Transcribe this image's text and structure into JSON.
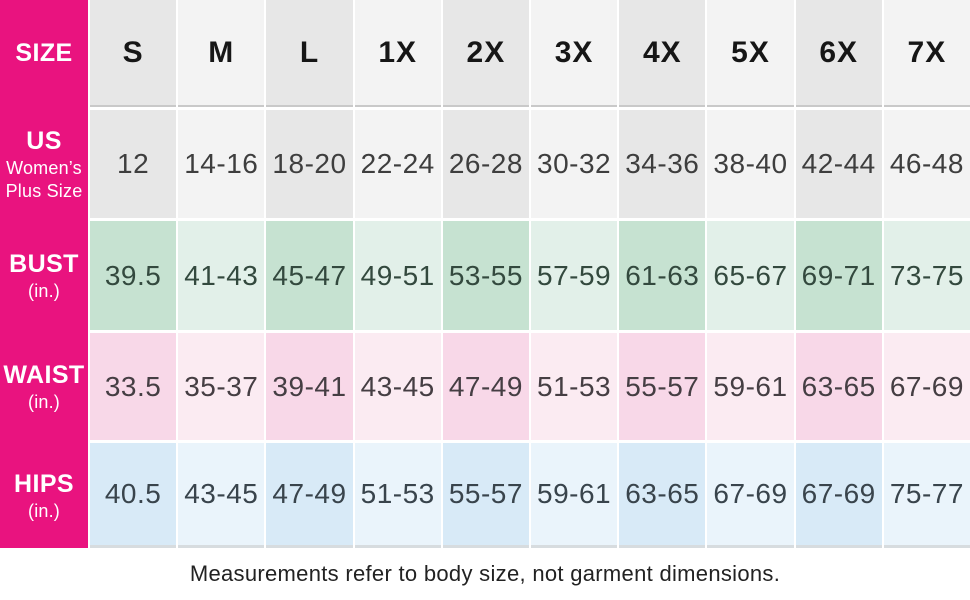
{
  "brand_pink": "#e9137f",
  "size_chart": {
    "corner_label": "SIZE",
    "columns": [
      "S",
      "M",
      "L",
      "1X",
      "2X",
      "3X",
      "4X",
      "5X",
      "6X",
      "7X"
    ],
    "header_bg_dark": "#e7e7e7",
    "header_bg_light": "#f3f3f3",
    "rows": [
      {
        "label": "US",
        "sublabel_lines": [
          "Women’s",
          "Plus Size"
        ],
        "values": [
          "12",
          "14-16",
          "18-20",
          "22-24",
          "26-28",
          "30-32",
          "34-36",
          "38-40",
          "42-44",
          "46-48"
        ],
        "bg_dark": "#e7e7e7",
        "bg_light": "#f3f3f3",
        "text_color": "#3e3e3e"
      },
      {
        "label": "BUST",
        "sublabel_lines": [
          "(in.)"
        ],
        "values": [
          "39.5",
          "41-43",
          "45-47",
          "49-51",
          "53-55",
          "57-59",
          "61-63",
          "65-67",
          "69-71",
          "73-75"
        ],
        "bg_dark": "#c6e2d1",
        "bg_light": "#e2f0e9",
        "text_color": "#33493e"
      },
      {
        "label": "WAIST",
        "sublabel_lines": [
          "(in.)"
        ],
        "values": [
          "33.5",
          "35-37",
          "39-41",
          "43-45",
          "47-49",
          "51-53",
          "55-57",
          "59-61",
          "63-65",
          "67-69"
        ],
        "bg_dark": "#f8d8e8",
        "bg_light": "#fbebf2",
        "text_color": "#453e43"
      },
      {
        "label": "HIPS",
        "sublabel_lines": [
          "(in.)"
        ],
        "values": [
          "40.5",
          "43-45",
          "47-49",
          "51-53",
          "55-57",
          "59-61",
          "63-65",
          "67-69",
          "67-69",
          "75-77"
        ],
        "bg_dark": "#d8eaf7",
        "bg_light": "#eaf4fb",
        "text_color": "#39444c"
      }
    ],
    "footer_note": "Measurements refer to body size, not garment dimensions."
  },
  "chart_data": {
    "type": "table",
    "title": "Women’s Plus Size Chart",
    "columns": [
      "SIZE",
      "S",
      "M",
      "L",
      "1X",
      "2X",
      "3X",
      "4X",
      "5X",
      "6X",
      "7X"
    ],
    "rows": [
      [
        "US Women’s Plus Size",
        "12",
        "14-16",
        "18-20",
        "22-24",
        "26-28",
        "30-32",
        "34-36",
        "38-40",
        "42-44",
        "46-48"
      ],
      [
        "BUST (in.)",
        "39.5",
        "41-43",
        "45-47",
        "49-51",
        "53-55",
        "57-59",
        "61-63",
        "65-67",
        "69-71",
        "73-75"
      ],
      [
        "WAIST (in.)",
        "33.5",
        "35-37",
        "39-41",
        "43-45",
        "47-49",
        "51-53",
        "55-57",
        "59-61",
        "63-65",
        "67-69"
      ],
      [
        "HIPS (in.)",
        "40.5",
        "43-45",
        "47-49",
        "51-53",
        "55-57",
        "59-61",
        "63-65",
        "67-69",
        "67-69",
        "75-77"
      ]
    ],
    "note": "Measurements refer to body size, not garment dimensions."
  }
}
